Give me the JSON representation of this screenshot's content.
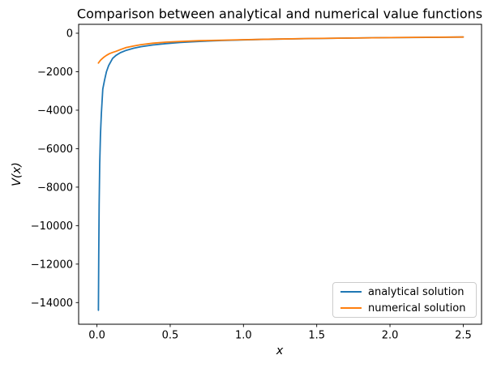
{
  "chart_data": {
    "type": "line",
    "title": "Comparison between analytical and numerical value functions",
    "xlabel": "x",
    "ylabel": "V(x)",
    "xlim": [
      -0.125,
      2.625
    ],
    "ylim": [
      -15125,
      463
    ],
    "grid": false,
    "legend_position": "lower right",
    "background_color": "#ffffff",
    "spine_color": "#000000",
    "xticks": {
      "values": [
        0.0,
        0.5,
        1.0,
        1.5,
        2.0,
        2.5
      ],
      "labels": [
        "0.0",
        "0.5",
        "1.0",
        "1.5",
        "2.0",
        "2.5"
      ]
    },
    "yticks": {
      "values": [
        0,
        -2000,
        -4000,
        -6000,
        -8000,
        -10000,
        -12000,
        -14000
      ],
      "labels": [
        "0",
        "−2000",
        "−4000",
        "−6000",
        "−8000",
        "−10000",
        "−12000",
        "−14000"
      ]
    },
    "series": [
      {
        "name": "analytical solution",
        "color": "#1f77b4",
        "x": [
          0.01,
          0.012,
          0.015,
          0.019,
          0.024,
          0.03,
          0.04,
          0.052,
          0.065,
          0.08,
          0.107,
          0.13,
          0.16,
          0.2,
          0.25,
          0.3,
          0.38,
          0.47,
          0.57,
          0.7,
          0.85,
          1.0,
          1.2,
          1.45,
          1.7,
          2.0,
          2.25,
          2.5
        ],
        "y": [
          -14400,
          -11600,
          -8900,
          -6800,
          -5300,
          -4200,
          -2900,
          -2430,
          -2000,
          -1680,
          -1310,
          -1150,
          -1010,
          -890,
          -780,
          -700,
          -610,
          -540,
          -480,
          -425,
          -380,
          -345,
          -310,
          -278,
          -253,
          -230,
          -214,
          -200
        ]
      },
      {
        "name": "numerical solution",
        "color": "#ff7f0e",
        "x": [
          0.01,
          0.02,
          0.03,
          0.045,
          0.065,
          0.085,
          0.107,
          0.13,
          0.16,
          0.2,
          0.25,
          0.3,
          0.38,
          0.47,
          0.57,
          0.7,
          0.85,
          1.0,
          1.2,
          1.45,
          1.7,
          2.0,
          2.25,
          2.5
        ],
        "y": [
          -1550,
          -1440,
          -1360,
          -1260,
          -1150,
          -1060,
          -1000,
          -940,
          -850,
          -740,
          -660,
          -595,
          -520,
          -465,
          -425,
          -390,
          -362,
          -338,
          -308,
          -276,
          -252,
          -229,
          -213,
          -199
        ]
      }
    ]
  },
  "legend": {
    "items": [
      {
        "label": "analytical solution"
      },
      {
        "label": "numerical solution"
      }
    ]
  }
}
